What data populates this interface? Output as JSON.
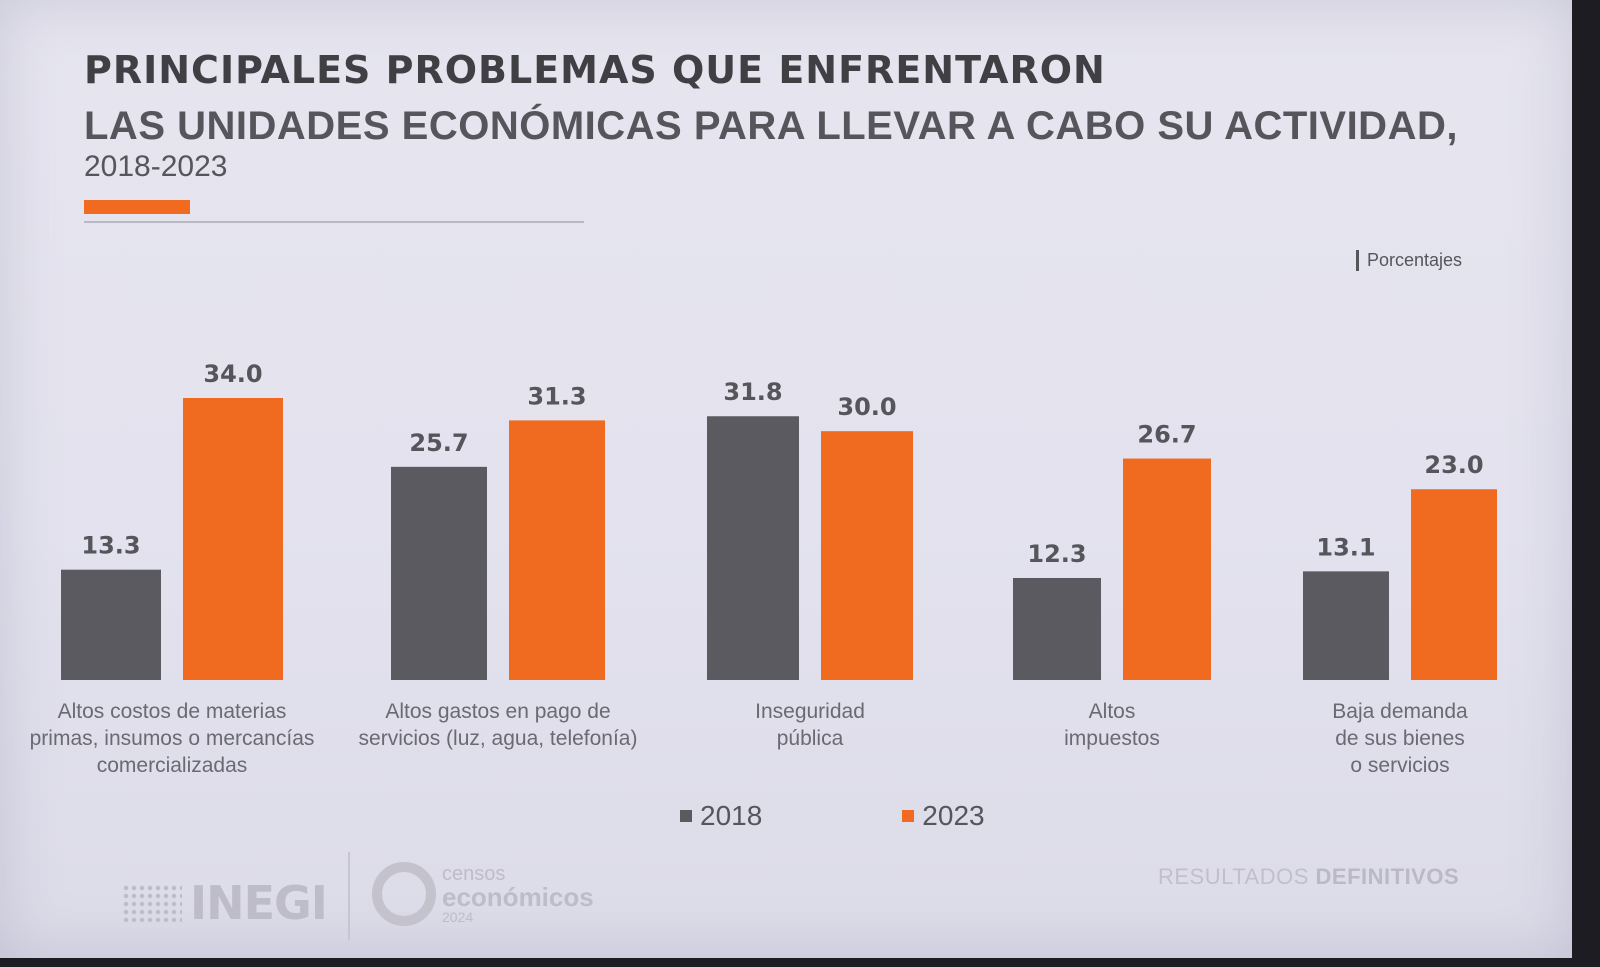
{
  "header": {
    "title_line1": "PRINCIPALES PROBLEMAS QUE ENFRENTARON",
    "title_line2": "LAS UNIDADES ECONÓMICAS PARA LLEVAR A CABO SU ACTIVIDAD,",
    "title_line3": "2018-2023",
    "units_label": "Porcentajes"
  },
  "chart_data": {
    "type": "bar",
    "title": "PRINCIPALES PROBLEMAS QUE ENFRENTARON LAS UNIDADES ECONÓMICAS PARA LLEVAR A CABO SU ACTIVIDAD, 2018-2023",
    "ylabel": "Porcentajes",
    "categories": [
      [
        "Altos costos de materias",
        "primas, insumos o mercancías",
        "comercializadas"
      ],
      [
        "Altos gastos en pago de",
        "servicios (luz, agua, telefonía)"
      ],
      [
        "Inseguridad",
        "pública"
      ],
      [
        "Altos",
        "impuestos"
      ],
      [
        "Baja demanda",
        "de sus bienes",
        "o servicios"
      ]
    ],
    "series": [
      {
        "name": "2018",
        "color": "#5a5a60",
        "values": [
          13.3,
          25.7,
          31.8,
          12.3,
          13.1
        ],
        "labels": [
          "13.3",
          "25.7",
          "31.8",
          "12.3",
          "13.1"
        ]
      },
      {
        "name": "2023",
        "color": "#f06a1f",
        "values": [
          34.0,
          31.3,
          30.0,
          26.7,
          23.0
        ],
        "labels": [
          "34.0",
          "31.3",
          "30.0",
          "26.7",
          "23.0"
        ]
      }
    ],
    "ylim": [
      0,
      34.0
    ],
    "grid": false,
    "legend_position": "bottom"
  },
  "legend": [
    {
      "label": "2018",
      "color": "#5a5a60"
    },
    {
      "label": "2023",
      "color": "#f06a1f"
    }
  ],
  "footer": {
    "logo_text": "INEGI",
    "censos_line1": "censos",
    "censos_line2": "económicos",
    "censos_line3": "2024",
    "results_light": "RESULTADOS",
    "results_bold": "DEFINITIVOS"
  }
}
